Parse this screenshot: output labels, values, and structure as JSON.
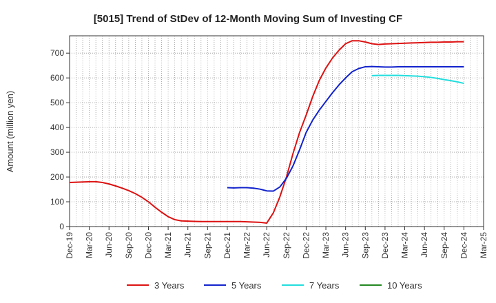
{
  "chart_data": {
    "type": "line",
    "title": "[5015]  Trend of StDev of 12-Month Moving Sum of Investing CF",
    "xlabel": "",
    "ylabel": "Amount (million yen)",
    "ylim": [
      0,
      770
    ],
    "yticks": [
      0,
      100,
      200,
      300,
      400,
      500,
      600,
      700
    ],
    "xticks": [
      "Dec-19",
      "Mar-20",
      "Jun-20",
      "Sep-20",
      "Dec-20",
      "Mar-21",
      "Jun-21",
      "Sep-21",
      "Dec-21",
      "Mar-22",
      "Jun-22",
      "Sep-22",
      "Dec-22",
      "Mar-23",
      "Jun-23",
      "Sep-23",
      "Dec-23",
      "Mar-24",
      "Jun-24",
      "Sep-24",
      "Dec-24",
      "Mar-25"
    ],
    "grid": true,
    "legend_position": "bottom",
    "series": [
      {
        "name": "3 Years",
        "color": "#dd1111",
        "points": [
          [
            "Dec-19",
            178
          ],
          [
            "Jan-20",
            179
          ],
          [
            "Feb-20",
            180
          ],
          [
            "Mar-20",
            181
          ],
          [
            "Apr-20",
            181
          ],
          [
            "May-20",
            178
          ],
          [
            "Jun-20",
            172
          ],
          [
            "Jul-20",
            164
          ],
          [
            "Aug-20",
            155
          ],
          [
            "Sep-20",
            145
          ],
          [
            "Oct-20",
            133
          ],
          [
            "Nov-20",
            118
          ],
          [
            "Dec-20",
            100
          ],
          [
            "Jan-21",
            78
          ],
          [
            "Feb-21",
            58
          ],
          [
            "Mar-21",
            40
          ],
          [
            "Apr-21",
            28
          ],
          [
            "May-21",
            23
          ],
          [
            "Jun-21",
            22
          ],
          [
            "Jul-21",
            21
          ],
          [
            "Aug-21",
            20
          ],
          [
            "Sep-21",
            20
          ],
          [
            "Oct-21",
            20
          ],
          [
            "Nov-21",
            20
          ],
          [
            "Dec-21",
            20
          ],
          [
            "Jan-22",
            20
          ],
          [
            "Feb-22",
            20
          ],
          [
            "Mar-22",
            19
          ],
          [
            "Apr-22",
            18
          ],
          [
            "May-22",
            17
          ],
          [
            "Jun-22",
            14
          ],
          [
            "Jul-22",
            55
          ],
          [
            "Aug-22",
            120
          ],
          [
            "Sep-22",
            200
          ],
          [
            "Oct-22",
            295
          ],
          [
            "Nov-22",
            380
          ],
          [
            "Dec-22",
            450
          ],
          [
            "Jan-23",
            525
          ],
          [
            "Feb-23",
            590
          ],
          [
            "Mar-23",
            640
          ],
          [
            "Apr-23",
            680
          ],
          [
            "May-23",
            712
          ],
          [
            "Jun-23",
            738
          ],
          [
            "Jul-23",
            750
          ],
          [
            "Aug-23",
            750
          ],
          [
            "Sep-23",
            745
          ],
          [
            "Oct-23",
            738
          ],
          [
            "Nov-23",
            735
          ],
          [
            "Dec-23",
            737
          ],
          [
            "Jan-24",
            738
          ],
          [
            "Feb-24",
            739
          ],
          [
            "Mar-24",
            740
          ],
          [
            "Apr-24",
            741
          ],
          [
            "May-24",
            742
          ],
          [
            "Jun-24",
            743
          ],
          [
            "Jul-24",
            744
          ],
          [
            "Aug-24",
            744
          ],
          [
            "Sep-24",
            745
          ],
          [
            "Oct-24",
            745
          ],
          [
            "Nov-24",
            746
          ],
          [
            "Dec-24",
            746
          ]
        ]
      },
      {
        "name": "5 Years",
        "color": "#1122cc",
        "points": [
          [
            "Dec-21",
            157
          ],
          [
            "Jan-22",
            156
          ],
          [
            "Feb-22",
            157
          ],
          [
            "Mar-22",
            157
          ],
          [
            "Apr-22",
            155
          ],
          [
            "May-22",
            151
          ],
          [
            "Jun-22",
            144
          ],
          [
            "Jul-22",
            143
          ],
          [
            "Aug-22",
            160
          ],
          [
            "Sep-22",
            195
          ],
          [
            "Oct-22",
            245
          ],
          [
            "Nov-22",
            310
          ],
          [
            "Dec-22",
            380
          ],
          [
            "Jan-23",
            430
          ],
          [
            "Feb-23",
            470
          ],
          [
            "Mar-23",
            505
          ],
          [
            "Apr-23",
            540
          ],
          [
            "May-23",
            572
          ],
          [
            "Jun-23",
            600
          ],
          [
            "Jul-23",
            625
          ],
          [
            "Aug-23",
            638
          ],
          [
            "Sep-23",
            645
          ],
          [
            "Oct-23",
            646
          ],
          [
            "Nov-23",
            645
          ],
          [
            "Dec-23",
            644
          ],
          [
            "Jan-24",
            644
          ],
          [
            "Feb-24",
            645
          ],
          [
            "Mar-24",
            645
          ],
          [
            "Apr-24",
            645
          ],
          [
            "May-24",
            645
          ],
          [
            "Jun-24",
            645
          ],
          [
            "Jul-24",
            645
          ],
          [
            "Aug-24",
            645
          ],
          [
            "Sep-24",
            645
          ],
          [
            "Oct-24",
            645
          ],
          [
            "Nov-24",
            645
          ],
          [
            "Dec-24",
            645
          ]
        ]
      },
      {
        "name": "7 Years",
        "color": "#22dddd",
        "points": [
          [
            "Oct-23",
            609
          ],
          [
            "Nov-23",
            610
          ],
          [
            "Dec-23",
            610
          ],
          [
            "Jan-24",
            610
          ],
          [
            "Feb-24",
            610
          ],
          [
            "Mar-24",
            609
          ],
          [
            "Apr-24",
            608
          ],
          [
            "May-24",
            607
          ],
          [
            "Jun-24",
            605
          ],
          [
            "Jul-24",
            602
          ],
          [
            "Aug-24",
            598
          ],
          [
            "Sep-24",
            593
          ],
          [
            "Oct-24",
            589
          ],
          [
            "Nov-24",
            584
          ],
          [
            "Dec-24",
            578
          ]
        ]
      },
      {
        "name": "10 Years",
        "color": "#228822",
        "points": []
      }
    ]
  }
}
